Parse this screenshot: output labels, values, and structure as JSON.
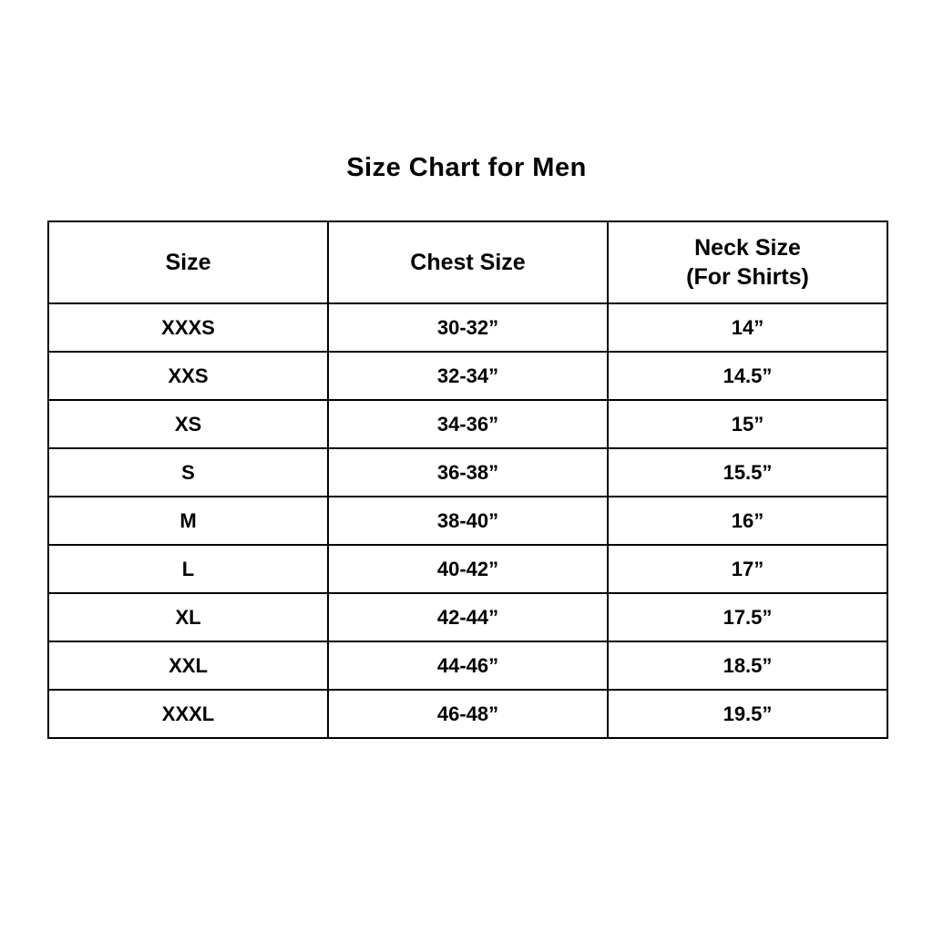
{
  "title": "Size Chart for Men",
  "colors": {
    "background": "#ffffff",
    "text": "#000000",
    "border": "#000000"
  },
  "chart_data": {
    "type": "table",
    "title": "Size Chart for Men",
    "columns": [
      "Size",
      "Chest Size",
      "Neck Size (For Shirts)"
    ],
    "header": {
      "size": "Size",
      "chest": "Chest Size",
      "neck_line1": "Neck Size",
      "neck_line2": "(For Shirts)"
    },
    "rows": [
      [
        "XXXS",
        "30-32”",
        "14”"
      ],
      [
        "XXS",
        "32-34”",
        "14.5”"
      ],
      [
        "XS",
        "34-36”",
        "15”"
      ],
      [
        "S",
        "36-38”",
        "15.5”"
      ],
      [
        "M",
        "38-40”",
        "16”"
      ],
      [
        "L",
        "40-42”",
        "17”"
      ],
      [
        "XL",
        "42-44”",
        "17.5”"
      ],
      [
        "XXL",
        "44-46”",
        "18.5”"
      ],
      [
        "XXXL",
        "46-48”",
        "19.5”"
      ]
    ]
  }
}
